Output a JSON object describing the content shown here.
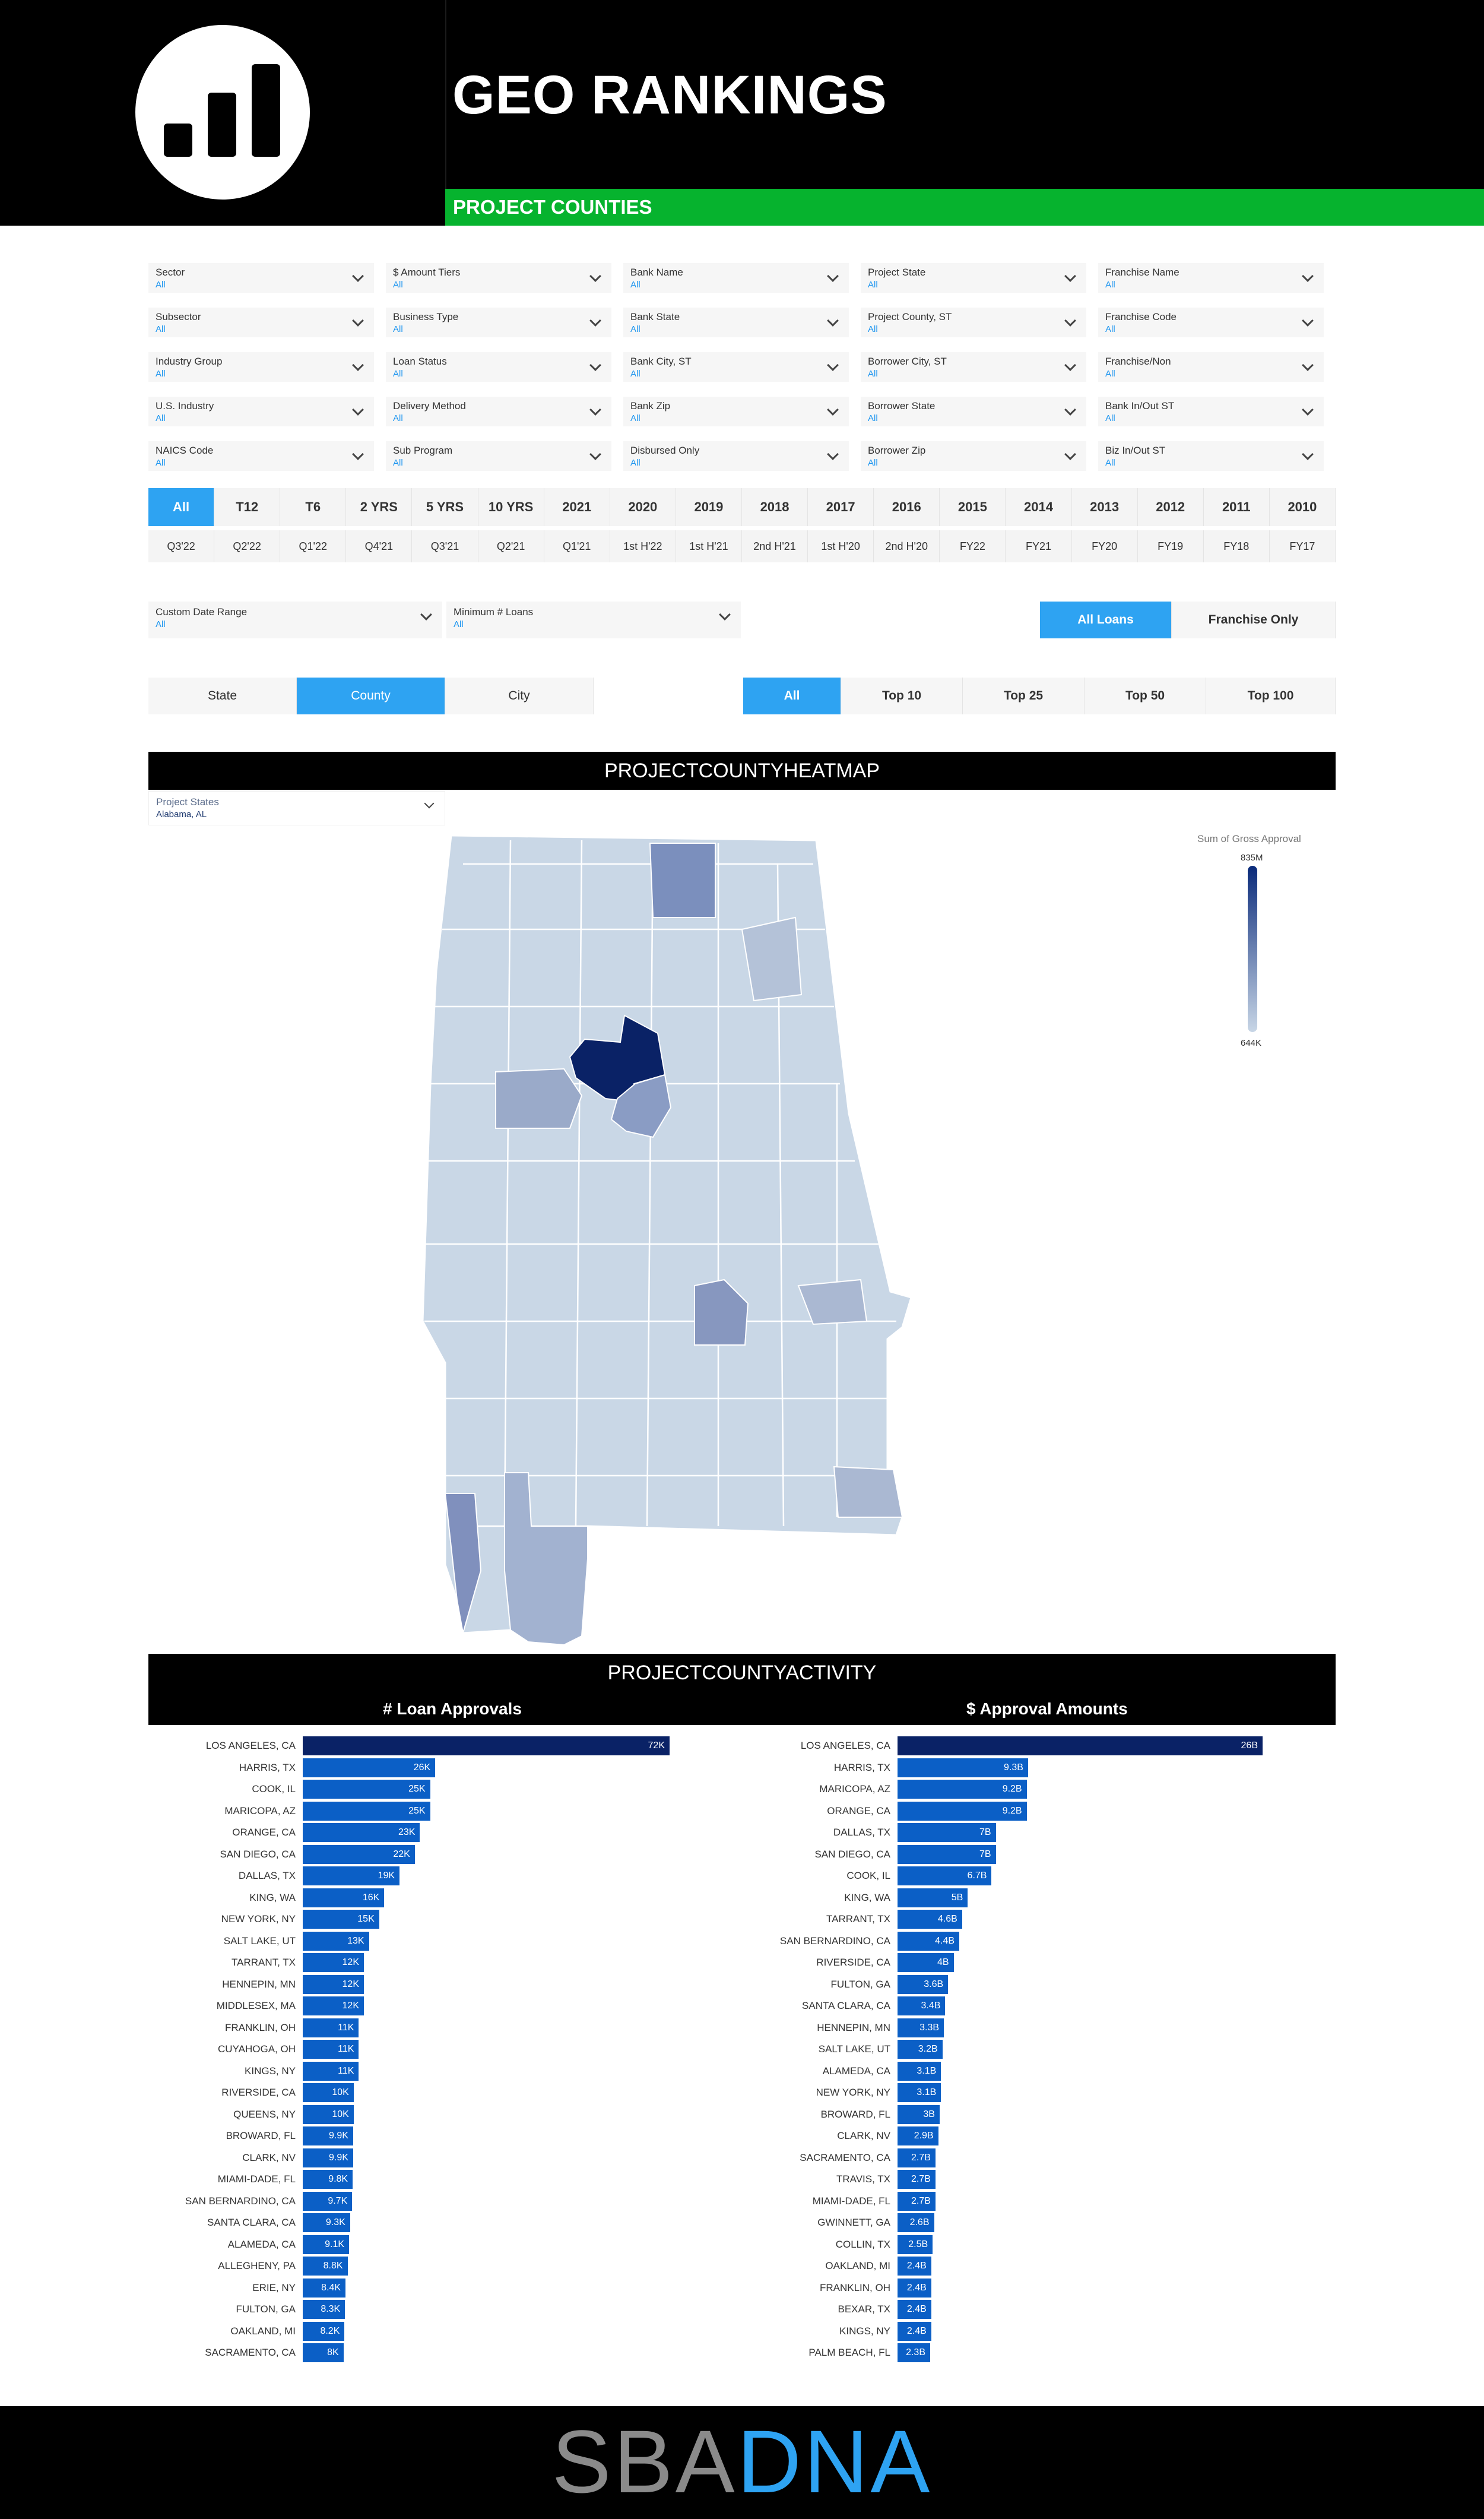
{
  "header": {
    "title": "GEO RANKINGS",
    "subtitle": "PROJECT COUNTIES"
  },
  "filters": [
    {
      "label": "Sector",
      "value": "All"
    },
    {
      "label": "$ Amount Tiers",
      "value": "All"
    },
    {
      "label": "Bank Name",
      "value": "All"
    },
    {
      "label": "Project State",
      "value": "All"
    },
    {
      "label": "Franchise Name",
      "value": "All"
    },
    {
      "label": "Subsector",
      "value": "All"
    },
    {
      "label": "Business Type",
      "value": "All"
    },
    {
      "label": "Bank State",
      "value": "All"
    },
    {
      "label": "Project County, ST",
      "value": "All"
    },
    {
      "label": "Franchise Code",
      "value": "All"
    },
    {
      "label": "Industry Group",
      "value": "All"
    },
    {
      "label": "Loan Status",
      "value": "All"
    },
    {
      "label": "Bank City, ST",
      "value": "All"
    },
    {
      "label": "Borrower City, ST",
      "value": "All"
    },
    {
      "label": "Franchise/Non",
      "value": "All"
    },
    {
      "label": "U.S. Industry",
      "value": "All"
    },
    {
      "label": "Delivery Method",
      "value": "All"
    },
    {
      "label": "Bank Zip",
      "value": "All"
    },
    {
      "label": "Borrower State",
      "value": "All"
    },
    {
      "label": "Bank In/Out ST",
      "value": "All"
    },
    {
      "label": "NAICS Code",
      "value": "All"
    },
    {
      "label": "Sub Program",
      "value": "All"
    },
    {
      "label": "Disbursed Only",
      "value": "All"
    },
    {
      "label": "Borrower Zip",
      "value": "All"
    },
    {
      "label": "Biz In/Out ST",
      "value": "All"
    }
  ],
  "periods_row1": [
    "All",
    "T12",
    "T6",
    "2 YRS",
    "5 YRS",
    "10 YRS",
    "2021",
    "2020",
    "2019",
    "2018",
    "2017",
    "2016",
    "2015",
    "2014",
    "2013",
    "2012",
    "2011",
    "2010"
  ],
  "periods_row2": [
    "Q3'22",
    "Q2'22",
    "Q1'22",
    "Q4'21",
    "Q3'21",
    "Q2'21",
    "Q1'21",
    "1st H'22",
    "1st H'21",
    "2nd H'21",
    "1st H'20",
    "2nd H'20",
    "FY22",
    "FY21",
    "FY20",
    "FY19",
    "FY18",
    "FY17"
  ],
  "periods_selected": "All",
  "custom_date": {
    "label": "Custom Date Range",
    "value": "All"
  },
  "min_loans": {
    "label": "Minimum # Loans",
    "value": "All"
  },
  "loan_type": {
    "options": [
      "All Loans",
      "Franchise Only"
    ],
    "selected": "All Loans"
  },
  "geo_level": {
    "options": [
      "State",
      "County",
      "City"
    ],
    "selected": "County"
  },
  "top_n": {
    "options": [
      "All",
      "Top 10",
      "Top 25",
      "Top 50",
      "Top 100"
    ],
    "selected": "All"
  },
  "heatmap": {
    "title": "PROJECTCOUNTYHEATMAP",
    "state_filter": {
      "label": "Project States",
      "value": "Alabama, AL"
    },
    "legend_title": "Sum of Gross Approval",
    "legend_max": "835M",
    "legend_min": "644K"
  },
  "activity": {
    "title": "PROJECTCOUNTYACTIVITY",
    "loans_title": "# Loan Approvals",
    "amounts_title": "$ Approval Amounts"
  },
  "chart_data": [
    {
      "type": "bar",
      "title": "# Loan Approvals",
      "categories": [
        "LOS ANGELES, CA",
        "HARRIS, TX",
        "COOK, IL",
        "MARICOPA, AZ",
        "ORANGE, CA",
        "SAN DIEGO, CA",
        "DALLAS, TX",
        "KING, WA",
        "NEW YORK, NY",
        "SALT LAKE, UT",
        "TARRANT, TX",
        "HENNEPIN, MN",
        "MIDDLESEX, MA",
        "FRANKLIN, OH",
        "CUYAHOGA, OH",
        "KINGS, NY",
        "RIVERSIDE, CA",
        "QUEENS, NY",
        "BROWARD, FL",
        "CLARK, NV",
        "MIAMI-DADE, FL",
        "SAN BERNARDINO, CA",
        "SANTA CLARA, CA",
        "ALAMEDA, CA",
        "ALLEGHENY, PA",
        "ERIE, NY",
        "FULTON, GA",
        "OAKLAND, MI",
        "SACRAMENTO, CA"
      ],
      "values": [
        72000,
        26000,
        25000,
        25000,
        23000,
        22000,
        19000,
        16000,
        15000,
        13000,
        12000,
        12000,
        12000,
        11000,
        11000,
        11000,
        10000,
        10000,
        9900,
        9900,
        9800,
        9700,
        9300,
        9100,
        8800,
        8400,
        8300,
        8200,
        8000
      ],
      "labels": [
        "72K",
        "26K",
        "25K",
        "25K",
        "23K",
        "22K",
        "19K",
        "16K",
        "15K",
        "13K",
        "12K",
        "12K",
        "12K",
        "11K",
        "11K",
        "11K",
        "10K",
        "10K",
        "9.9K",
        "9.9K",
        "9.8K",
        "9.7K",
        "9.3K",
        "9.1K",
        "8.8K",
        "8.4K",
        "8.3K",
        "8.2K",
        "8K"
      ]
    },
    {
      "type": "bar",
      "title": "$ Approval Amounts",
      "categories": [
        "LOS ANGELES, CA",
        "HARRIS, TX",
        "MARICOPA, AZ",
        "ORANGE, CA",
        "DALLAS, TX",
        "SAN DIEGO, CA",
        "COOK, IL",
        "KING, WA",
        "TARRANT, TX",
        "SAN BERNARDINO, CA",
        "RIVERSIDE, CA",
        "FULTON, GA",
        "SANTA CLARA, CA",
        "HENNEPIN, MN",
        "SALT LAKE, UT",
        "ALAMEDA, CA",
        "NEW YORK, NY",
        "BROWARD, FL",
        "CLARK, NV",
        "SACRAMENTO, CA",
        "TRAVIS, TX",
        "MIAMI-DADE, FL",
        "GWINNETT, GA",
        "COLLIN, TX",
        "OAKLAND, MI",
        "FRANKLIN, OH",
        "BEXAR, TX",
        "KINGS, NY",
        "PALM BEACH, FL"
      ],
      "values": [
        26,
        9.3,
        9.2,
        9.2,
        7,
        7,
        6.7,
        5,
        4.6,
        4.4,
        4,
        3.6,
        3.4,
        3.3,
        3.2,
        3.1,
        3.1,
        3,
        2.9,
        2.7,
        2.7,
        2.7,
        2.6,
        2.5,
        2.4,
        2.4,
        2.4,
        2.4,
        2.3
      ],
      "labels": [
        "26B",
        "9.3B",
        "9.2B",
        "9.2B",
        "7B",
        "7B",
        "6.7B",
        "5B",
        "4.6B",
        "4.4B",
        "4B",
        "3.6B",
        "3.4B",
        "3.3B",
        "3.2B",
        "3.1B",
        "3.1B",
        "3B",
        "2.9B",
        "2.7B",
        "2.7B",
        "2.7B",
        "2.6B",
        "2.5B",
        "2.4B",
        "2.4B",
        "2.4B",
        "2.4B",
        "2.3B"
      ]
    }
  ],
  "footer": {
    "brand_a": "SBA",
    "brand_b": "DNA"
  },
  "colors": {
    "accent": "#2ea3f2",
    "green": "#06b32e",
    "bar": "#0b5fc6",
    "bar_top": "#0a2266"
  }
}
